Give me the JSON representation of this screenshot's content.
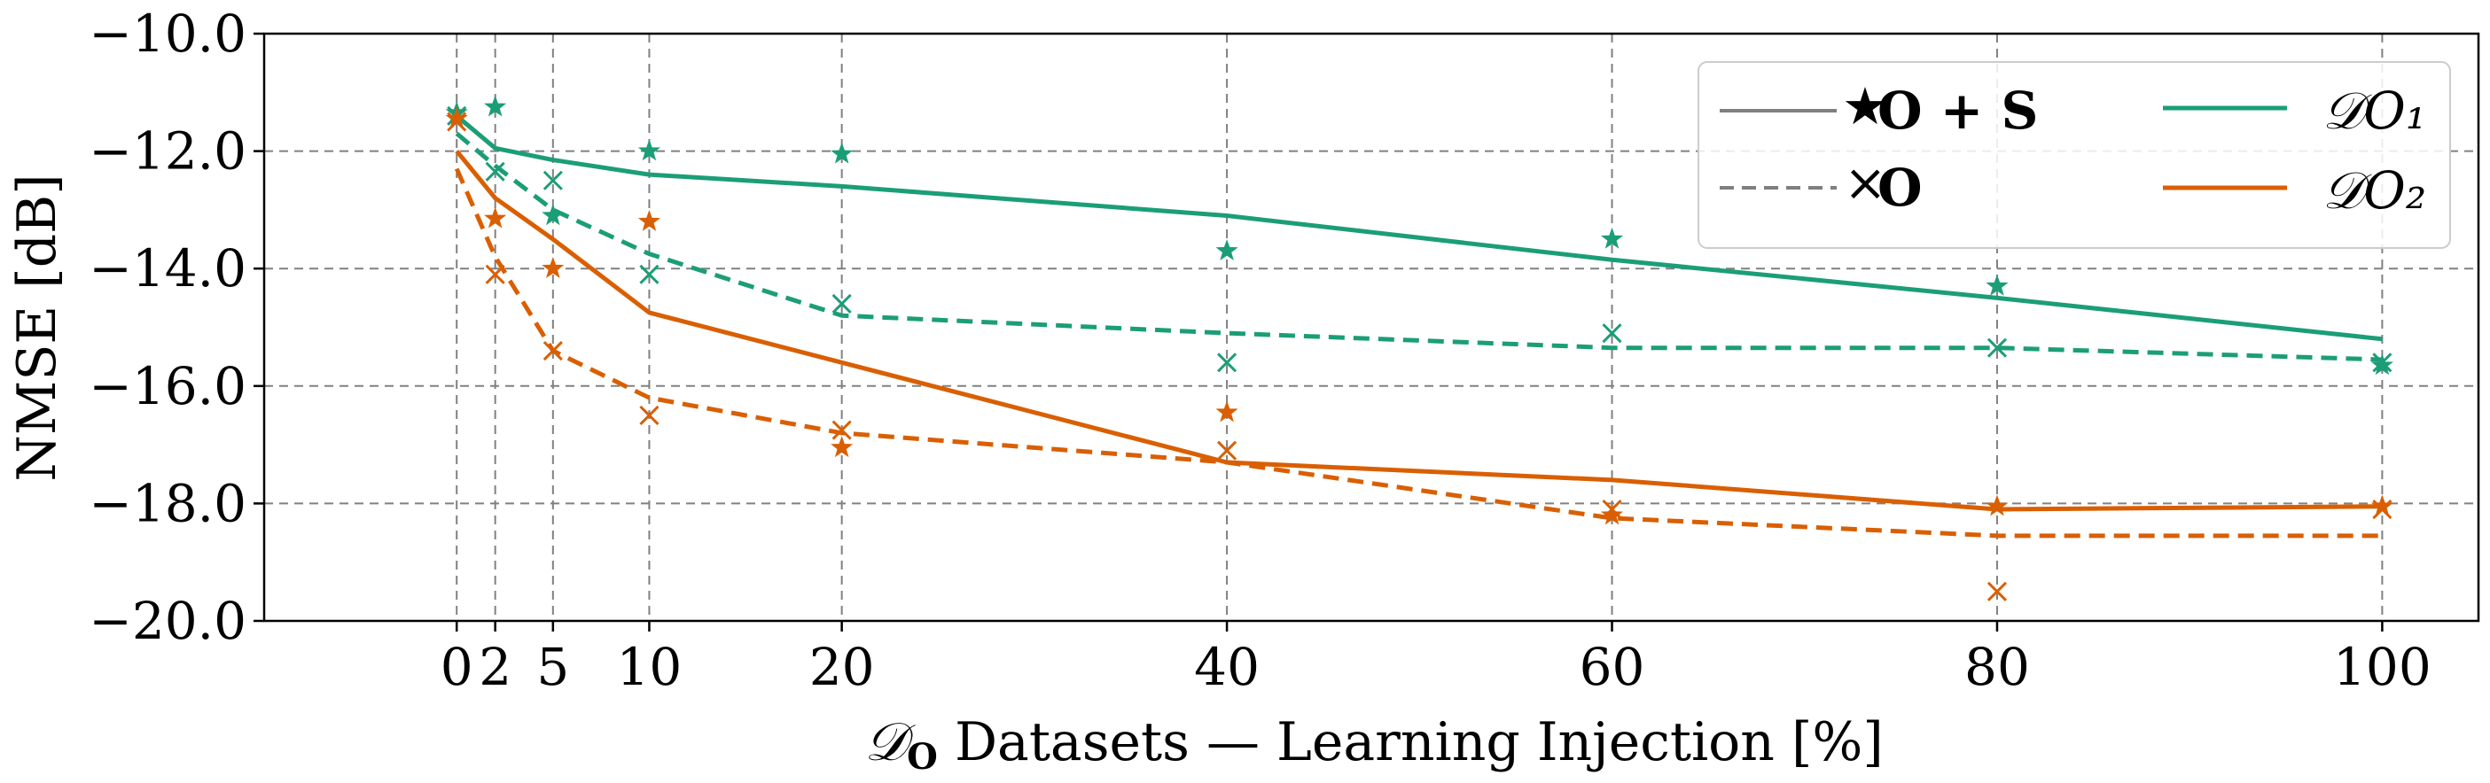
{
  "chart_data": {
    "type": "line",
    "x": [
      0,
      2,
      5,
      10,
      20,
      40,
      60,
      80,
      100
    ],
    "xticks": [
      "0",
      "2",
      "5",
      "10",
      "20",
      "40",
      "60",
      "80",
      "100"
    ],
    "yticks": [
      "−10.0",
      "−12.0",
      "−14.0",
      "−16.0",
      "−18.0",
      "−20.0"
    ],
    "xlim": [
      -10,
      105
    ],
    "ylim": [
      -20,
      -10
    ],
    "xlabel_prefix": "𝒟",
    "xlabel_sub": "O",
    "xlabel_rest": " Datasets  —  Learning Injection [%]",
    "ylabel": "NMSE [dB]",
    "grid": true,
    "legend": {
      "position": "top-right",
      "entries": [
        {
          "label": "O  + S",
          "style": "solid",
          "marker": "star"
        },
        {
          "label": "𝒟O₁",
          "color": "#1b9e77"
        },
        {
          "label": "O",
          "style": "dashed",
          "marker": "x"
        },
        {
          "label": "𝒟O₂",
          "color": "#d95f02"
        }
      ]
    },
    "series": [
      {
        "dataset": "DO1",
        "variant": "O+S",
        "color": "#1b9e77",
        "style": "solid",
        "fit": [
          -11.4,
          -11.95,
          -12.15,
          -12.4,
          -12.6,
          -13.1,
          -13.85,
          -14.5,
          -15.2
        ],
        "points": [
          -11.35,
          -11.25,
          -13.1,
          -12.0,
          -12.05,
          -13.7,
          -13.5,
          -14.3,
          -15.65
        ]
      },
      {
        "dataset": "DO1",
        "variant": "O",
        "color": "#1b9e77",
        "style": "dashed",
        "fit": [
          -11.7,
          -12.25,
          -13.0,
          -13.75,
          -14.8,
          -15.1,
          -15.35,
          -15.35,
          -15.55
        ],
        "points": [
          -11.4,
          -12.35,
          -12.5,
          -14.1,
          -14.6,
          -15.6,
          -15.1,
          -15.35,
          -15.6
        ]
      },
      {
        "dataset": "DO2",
        "variant": "O+S",
        "color": "#d95f02",
        "style": "solid",
        "fit": [
          -12.0,
          -12.8,
          -13.5,
          -14.75,
          -15.6,
          -17.3,
          -17.6,
          -18.1,
          -18.05
        ],
        "points": [
          -11.45,
          -13.15,
          -14.0,
          -13.2,
          -17.05,
          -16.45,
          -18.2,
          -18.05,
          -18.05
        ]
      },
      {
        "dataset": "DO2",
        "variant": "O",
        "color": "#d95f02",
        "style": "dashed",
        "fit": [
          -12.3,
          -13.8,
          -15.4,
          -16.2,
          -16.8,
          -17.3,
          -18.25,
          -18.55,
          -18.55
        ],
        "points": [
          -11.5,
          -14.1,
          -15.4,
          -16.5,
          -16.75,
          -17.1,
          -18.1,
          -19.5,
          -18.1
        ]
      }
    ]
  }
}
